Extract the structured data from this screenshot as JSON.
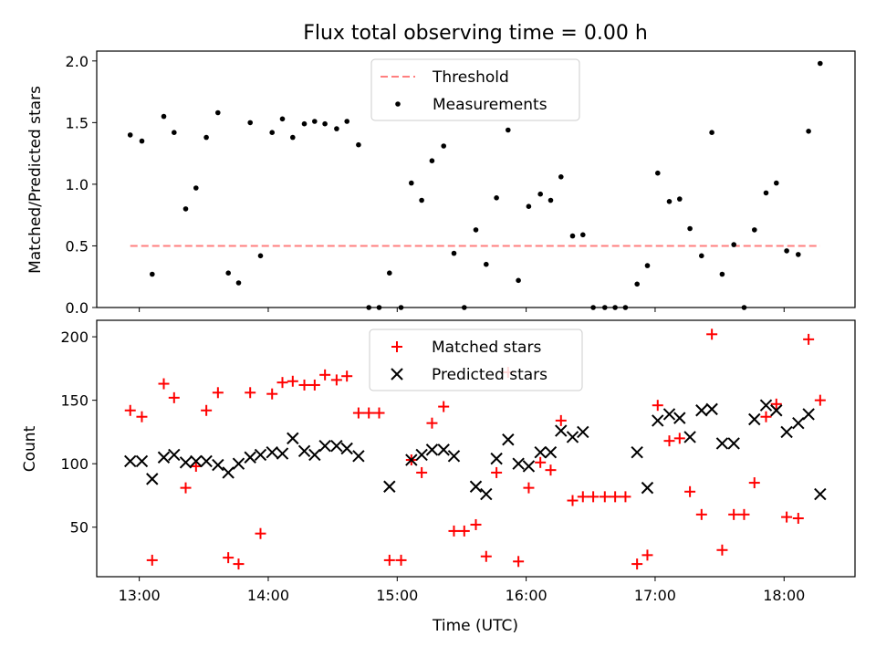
{
  "chart_data": {
    "title": "Flux total observing time = 0.00 h",
    "xlabel": "Time (UTC)",
    "x_range_hours": [
      12.67,
      18.55
    ],
    "x_ticks": [
      {
        "hour": 13,
        "label": "13:00"
      },
      {
        "hour": 14,
        "label": "14:00"
      },
      {
        "hour": 15,
        "label": "15:00"
      },
      {
        "hour": 16,
        "label": "16:00"
      },
      {
        "hour": 17,
        "label": "17:00"
      },
      {
        "hour": 18,
        "label": "18:00"
      }
    ],
    "panels": [
      {
        "type": "scatter",
        "ylabel": "Matched/Predicted stars",
        "ylim": [
          0,
          2.08
        ],
        "y_ticks": [
          {
            "value": 0.0,
            "label": "0.0"
          },
          {
            "value": 0.5,
            "label": "0.5"
          },
          {
            "value": 1.0,
            "label": "1.0"
          },
          {
            "value": 1.5,
            "label": "1.5"
          },
          {
            "value": 2.0,
            "label": "2.0"
          }
        ],
        "threshold": {
          "name": "Threshold",
          "value": 0.5,
          "x_start": 12.93,
          "x_end": 18.28,
          "color": "#ff7f7f"
        },
        "series": [
          {
            "name": "Measurements",
            "color": "#000000",
            "marker": "dot",
            "x": [
              12.93,
              13.02,
              13.1,
              13.19,
              13.27,
              13.36,
              13.44,
              13.52,
              13.61,
              13.69,
              13.77,
              13.86,
              13.94,
              14.03,
              14.11,
              14.19,
              14.28,
              14.36,
              14.44,
              14.53,
              14.61,
              14.7,
              14.78,
              14.86,
              14.94,
              15.03,
              15.11,
              15.19,
              15.27,
              15.36,
              15.44,
              15.52,
              15.61,
              15.69,
              15.77,
              15.86,
              15.94,
              16.02,
              16.11,
              16.19,
              16.27,
              16.36,
              16.44,
              16.52,
              16.61,
              16.69,
              16.77,
              16.86,
              16.94,
              17.02,
              17.11,
              17.19,
              17.27,
              17.36,
              17.44,
              17.52,
              17.61,
              17.69,
              17.77,
              17.86,
              17.94,
              18.02,
              18.11,
              18.19,
              18.28
            ],
            "values": [
              1.4,
              1.35,
              0.27,
              1.55,
              1.42,
              0.8,
              0.97,
              1.38,
              1.58,
              0.28,
              0.2,
              1.5,
              0.42,
              1.42,
              1.53,
              1.38,
              1.49,
              1.51,
              1.49,
              1.45,
              1.51,
              1.32,
              0.0,
              0.0,
              0.28,
              0.0,
              1.01,
              0.87,
              1.19,
              1.31,
              0.44,
              0.0,
              0.63,
              0.35,
              0.89,
              1.44,
              0.22,
              0.82,
              0.92,
              0.87,
              1.06,
              0.58,
              0.59,
              0.0,
              0.0,
              0.0,
              0.0,
              0.19,
              0.34,
              1.09,
              0.86,
              0.88,
              0.64,
              0.42,
              1.42,
              0.27,
              0.51,
              0.0,
              0.63,
              0.93,
              1.01,
              0.46,
              0.43,
              1.43,
              1.98
            ]
          }
        ],
        "legend": [
          "Threshold",
          "Measurements"
        ]
      },
      {
        "type": "scatter",
        "ylabel": "Count",
        "ylim": [
          11,
          213
        ],
        "y_ticks": [
          {
            "value": 50,
            "label": "50"
          },
          {
            "value": 100,
            "label": "100"
          },
          {
            "value": 150,
            "label": "150"
          },
          {
            "value": 200,
            "label": "200"
          }
        ],
        "series": [
          {
            "name": "Matched stars",
            "color": "#ff0000",
            "marker": "plus",
            "x": [
              12.93,
              13.02,
              13.1,
              13.19,
              13.27,
              13.36,
              13.44,
              13.52,
              13.61,
              13.69,
              13.77,
              13.86,
              13.94,
              14.03,
              14.11,
              14.19,
              14.28,
              14.36,
              14.44,
              14.53,
              14.61,
              14.7,
              14.78,
              14.86,
              14.94,
              15.03,
              15.11,
              15.19,
              15.27,
              15.36,
              15.44,
              15.52,
              15.61,
              15.69,
              15.77,
              15.86,
              15.94,
              16.02,
              16.11,
              16.19,
              16.27,
              16.36,
              16.44,
              16.52,
              16.61,
              16.69,
              16.77,
              16.86,
              16.94,
              17.02,
              17.11,
              17.19,
              17.27,
              17.36,
              17.44,
              17.52,
              17.61,
              17.69,
              17.77,
              17.86,
              17.94,
              18.02,
              18.11,
              18.19,
              18.28
            ],
            "values": [
              142,
              137,
              24,
              163,
              152,
              81,
              98,
              142,
              156,
              26,
              21,
              156,
              45,
              155,
              164,
              165,
              162,
              162,
              170,
              166,
              169,
              140,
              140,
              140,
              24,
              24,
              103,
              93,
              132,
              145,
              47,
              47,
              52,
              27,
              93,
              172,
              23,
              81,
              101,
              95,
              134,
              71,
              74,
              74,
              74,
              74,
              74,
              21,
              28,
              146,
              118,
              120,
              78,
              60,
              202,
              32,
              60,
              60,
              85,
              137,
              147,
              58,
              57,
              198,
              150
            ]
          },
          {
            "name": "Predicted stars",
            "color": "#000000",
            "marker": "x",
            "x": [
              12.93,
              13.02,
              13.1,
              13.19,
              13.27,
              13.36,
              13.44,
              13.52,
              13.61,
              13.69,
              13.77,
              13.86,
              13.94,
              14.03,
              14.11,
              14.19,
              14.28,
              14.36,
              14.44,
              14.53,
              14.61,
              14.7,
              14.94,
              15.11,
              15.19,
              15.27,
              15.36,
              15.44,
              15.61,
              15.69,
              15.77,
              15.86,
              15.94,
              16.02,
              16.11,
              16.19,
              16.27,
              16.36,
              16.44,
              16.86,
              16.94,
              17.02,
              17.11,
              17.19,
              17.27,
              17.36,
              17.44,
              17.52,
              17.61,
              17.77,
              17.86,
              17.94,
              18.02,
              18.11,
              18.19,
              18.28
            ],
            "values": [
              102,
              102,
              88,
              105,
              107,
              101,
              102,
              102,
              99,
              93,
              100,
              105,
              107,
              109,
              108,
              120,
              110,
              107,
              114,
              114,
              112,
              106,
              82,
              103,
              107,
              111,
              111,
              106,
              82,
              76,
              104,
              119,
              100,
              98,
              109,
              109,
              126,
              121,
              125,
              109,
              81,
              134,
              139,
              136,
              121,
              142,
              143,
              116,
              116,
              135,
              146,
              142,
              125,
              132,
              139,
              76
            ]
          }
        ],
        "legend": [
          "Matched stars",
          "Predicted stars"
        ]
      }
    ]
  }
}
